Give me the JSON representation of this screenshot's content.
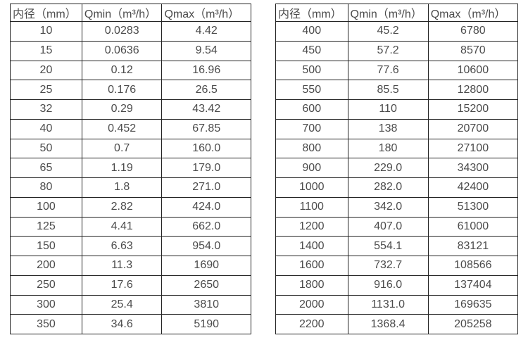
{
  "colors": {
    "background": "#ffffff",
    "text": "#4b4b4b",
    "border": "#232323"
  },
  "tables": {
    "left": {
      "headers": [
        "内径（mm）",
        "Qmin（m³/h）",
        "Qmax（m³/h）"
      ],
      "rows": [
        [
          "10",
          "0.0283",
          "4.42"
        ],
        [
          "15",
          "0.0636",
          "9.54"
        ],
        [
          "20",
          "0.12",
          "16.96"
        ],
        [
          "25",
          "0.176",
          "26.5"
        ],
        [
          "32",
          "0.29",
          "43.42"
        ],
        [
          "40",
          "0.452",
          "67.85"
        ],
        [
          "50",
          "0.7",
          "160.0"
        ],
        [
          "65",
          "1.19",
          "179.0"
        ],
        [
          "80",
          "1.8",
          "271.0"
        ],
        [
          "100",
          "2.82",
          "424.0"
        ],
        [
          "125",
          "4.41",
          "662.0"
        ],
        [
          "150",
          "6.63",
          "954.0"
        ],
        [
          "200",
          "11.3",
          "1690"
        ],
        [
          "250",
          "17.6",
          "2650"
        ],
        [
          "300",
          "25.4",
          "3810"
        ],
        [
          "350",
          "34.6",
          "5190"
        ]
      ]
    },
    "right": {
      "headers": [
        "内径（mm）",
        "Qmin（m³/h）",
        "Qmax（m³/h）"
      ],
      "rows": [
        [
          "400",
          "45.2",
          "6780"
        ],
        [
          "450",
          "57.2",
          "8570"
        ],
        [
          "500",
          "77.6",
          "10600"
        ],
        [
          "550",
          "85.5",
          "12800"
        ],
        [
          "600",
          "110",
          "15200"
        ],
        [
          "700",
          "138",
          "20700"
        ],
        [
          "800",
          "180",
          "27100"
        ],
        [
          "900",
          "229.0",
          "34300"
        ],
        [
          "1000",
          "282.0",
          "42400"
        ],
        [
          "1100",
          "342.0",
          "51300"
        ],
        [
          "1200",
          "407.0",
          "61000"
        ],
        [
          "1400",
          "554.1",
          "83121"
        ],
        [
          "1600",
          "732.7",
          "108566"
        ],
        [
          "1800",
          "916.0",
          "137404"
        ],
        [
          "2000",
          "1131.0",
          "169635"
        ],
        [
          "2200",
          "1368.4",
          "205258"
        ]
      ]
    }
  }
}
